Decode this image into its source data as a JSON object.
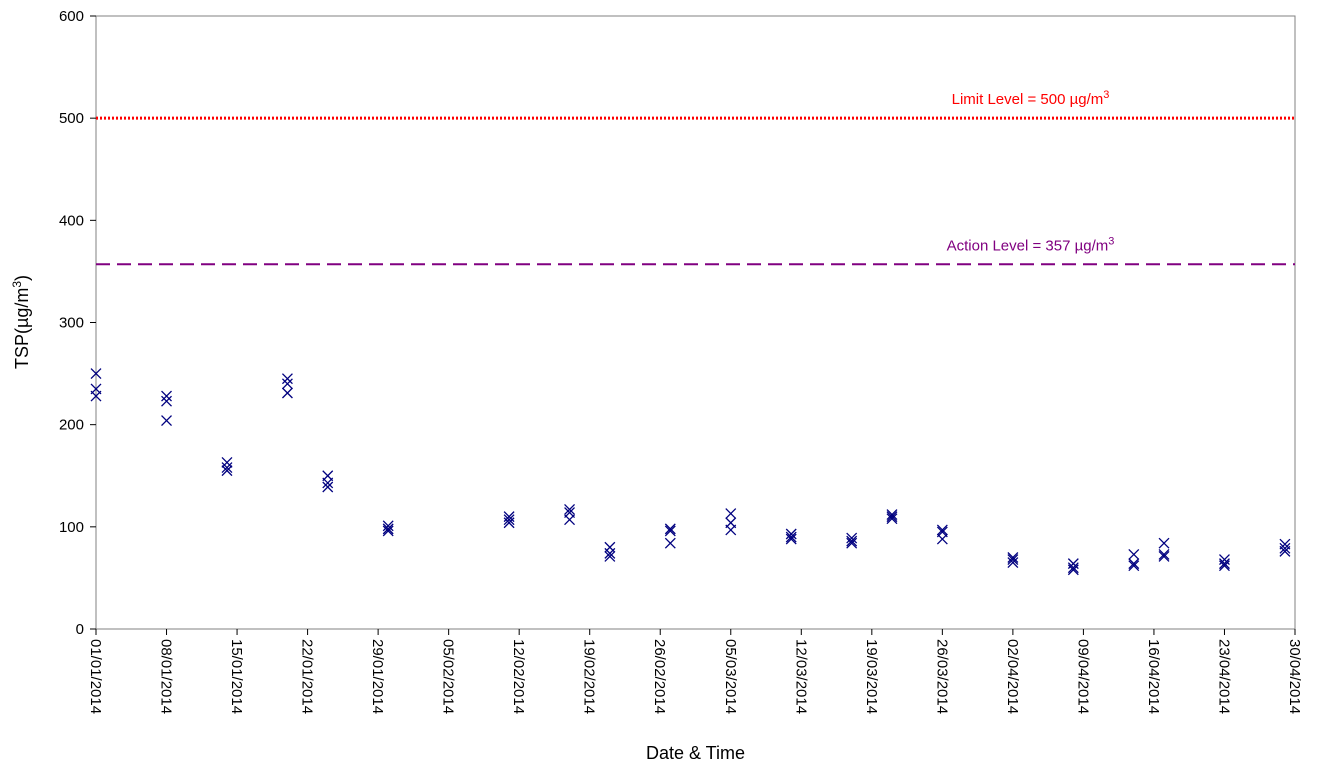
{
  "chart_data": {
    "type": "scatter",
    "xlabel": "Date & Time",
    "ylabel_main": "TSP(µg/m",
    "ylabel_sup": "3",
    "ylabel_end": ")",
    "ylim": [
      0,
      600
    ],
    "yticks": [
      0,
      100,
      200,
      300,
      400,
      500,
      600
    ],
    "xlim": [
      "01/01/2014",
      "30/04/2014"
    ],
    "xticks": [
      "01/01/2014",
      "08/01/2014",
      "15/01/2014",
      "22/01/2014",
      "29/01/2014",
      "05/02/2014",
      "12/02/2014",
      "19/02/2014",
      "26/02/2014",
      "05/03/2014",
      "12/03/2014",
      "19/03/2014",
      "26/03/2014",
      "02/04/2014",
      "09/04/2014",
      "16/04/2014",
      "23/04/2014",
      "30/04/2014"
    ],
    "grid": false,
    "marker": "x",
    "marker_color": "#00007f",
    "reference_lines": [
      {
        "label_main": "Limit Level = 500 µg/m",
        "label_sup": "3",
        "value": 500,
        "color": "#ff0000",
        "style": "dotted"
      },
      {
        "label_main": "Action Level = 357 µg/m",
        "label_sup": "3",
        "value": 357,
        "color": "#800080",
        "style": "dashed"
      }
    ],
    "series": [
      {
        "points": [
          {
            "x": "01/01/2014",
            "y": 250
          },
          {
            "x": "01/01/2014",
            "y": 235
          },
          {
            "x": "01/01/2014",
            "y": 228
          },
          {
            "x": "08/01/2014",
            "y": 228
          },
          {
            "x": "08/01/2014",
            "y": 223
          },
          {
            "x": "08/01/2014",
            "y": 204
          },
          {
            "x": "14/01/2014",
            "y": 163
          },
          {
            "x": "14/01/2014",
            "y": 158
          },
          {
            "x": "14/01/2014",
            "y": 155
          },
          {
            "x": "20/01/2014",
            "y": 245
          },
          {
            "x": "20/01/2014",
            "y": 240
          },
          {
            "x": "20/01/2014",
            "y": 231
          },
          {
            "x": "24/01/2014",
            "y": 150
          },
          {
            "x": "24/01/2014",
            "y": 143
          },
          {
            "x": "24/01/2014",
            "y": 139
          },
          {
            "x": "30/01/2014",
            "y": 101
          },
          {
            "x": "30/01/2014",
            "y": 98
          },
          {
            "x": "30/01/2014",
            "y": 96
          },
          {
            "x": "11/02/2014",
            "y": 110
          },
          {
            "x": "11/02/2014",
            "y": 107
          },
          {
            "x": "11/02/2014",
            "y": 104
          },
          {
            "x": "17/02/2014",
            "y": 117
          },
          {
            "x": "17/02/2014",
            "y": 114
          },
          {
            "x": "17/02/2014",
            "y": 107
          },
          {
            "x": "21/02/2014",
            "y": 80
          },
          {
            "x": "21/02/2014",
            "y": 74
          },
          {
            "x": "21/02/2014",
            "y": 71
          },
          {
            "x": "27/02/2014",
            "y": 98
          },
          {
            "x": "27/02/2014",
            "y": 96
          },
          {
            "x": "27/02/2014",
            "y": 84
          },
          {
            "x": "05/03/2014",
            "y": 113
          },
          {
            "x": "05/03/2014",
            "y": 104
          },
          {
            "x": "05/03/2014",
            "y": 97
          },
          {
            "x": "11/03/2014",
            "y": 93
          },
          {
            "x": "11/03/2014",
            "y": 90
          },
          {
            "x": "11/03/2014",
            "y": 88
          },
          {
            "x": "17/03/2014",
            "y": 89
          },
          {
            "x": "17/03/2014",
            "y": 86
          },
          {
            "x": "17/03/2014",
            "y": 84
          },
          {
            "x": "21/03/2014",
            "y": 112
          },
          {
            "x": "21/03/2014",
            "y": 110
          },
          {
            "x": "21/03/2014",
            "y": 108
          },
          {
            "x": "26/03/2014",
            "y": 97
          },
          {
            "x": "26/03/2014",
            "y": 95
          },
          {
            "x": "26/03/2014",
            "y": 88
          },
          {
            "x": "02/04/2014",
            "y": 70
          },
          {
            "x": "02/04/2014",
            "y": 68
          },
          {
            "x": "02/04/2014",
            "y": 65
          },
          {
            "x": "08/04/2014",
            "y": 64
          },
          {
            "x": "08/04/2014",
            "y": 60
          },
          {
            "x": "08/04/2014",
            "y": 58
          },
          {
            "x": "14/04/2014",
            "y": 73
          },
          {
            "x": "14/04/2014",
            "y": 64
          },
          {
            "x": "14/04/2014",
            "y": 62
          },
          {
            "x": "17/04/2014",
            "y": 84
          },
          {
            "x": "17/04/2014",
            "y": 73
          },
          {
            "x": "17/04/2014",
            "y": 71
          },
          {
            "x": "23/04/2014",
            "y": 68
          },
          {
            "x": "23/04/2014",
            "y": 64
          },
          {
            "x": "23/04/2014",
            "y": 62
          },
          {
            "x": "29/04/2014",
            "y": 83
          },
          {
            "x": "29/04/2014",
            "y": 79
          },
          {
            "x": "29/04/2014",
            "y": 76
          }
        ]
      }
    ]
  }
}
